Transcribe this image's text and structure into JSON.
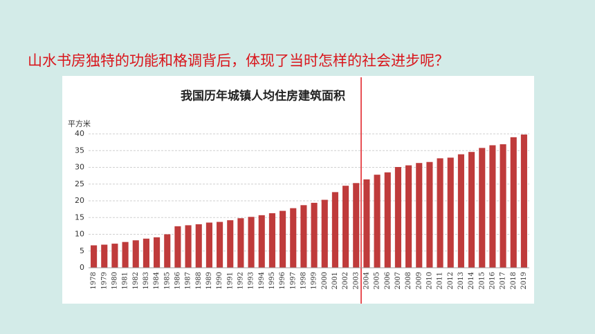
{
  "slide": {
    "heading": "山水书房独特的功能和格调背后，体现了当时怎样的社会进步呢？"
  },
  "chart_data": {
    "type": "bar",
    "title": "我国历年城镇人均住房建筑面积",
    "y_label": "平方米",
    "categories": [
      "1978",
      "1979",
      "1980",
      "1981",
      "1982",
      "1983",
      "1984",
      "1985",
      "1986",
      "1987",
      "1988",
      "1989",
      "1990",
      "1991",
      "1992",
      "1993",
      "1994",
      "1995",
      "1996",
      "1997",
      "1998",
      "1999",
      "2000",
      "2001",
      "2002",
      "2003",
      "2004",
      "2005",
      "2006",
      "2007",
      "2008",
      "2009",
      "2010",
      "2011",
      "2012",
      "2013",
      "2014",
      "2015",
      "2016",
      "2017",
      "2018",
      "2019"
    ],
    "values": [
      6.7,
      6.9,
      7.2,
      7.7,
      8.2,
      8.7,
      9.1,
      10.0,
      12.4,
      12.7,
      13.0,
      13.5,
      13.7,
      14.2,
      14.8,
      15.2,
      15.7,
      16.3,
      17.0,
      17.8,
      18.7,
      19.4,
      20.3,
      22.6,
      24.5,
      25.3,
      26.4,
      27.8,
      28.5,
      30.1,
      30.6,
      31.3,
      31.6,
      32.7,
      32.9,
      33.9,
      34.6,
      35.8,
      36.6,
      36.9,
      39.0,
      39.8
    ],
    "color": "#bf3b3b",
    "ylim": [
      0,
      40
    ],
    "yticks": [
      0,
      5,
      10,
      15,
      20,
      25,
      30,
      35,
      40
    ],
    "grid": true
  }
}
